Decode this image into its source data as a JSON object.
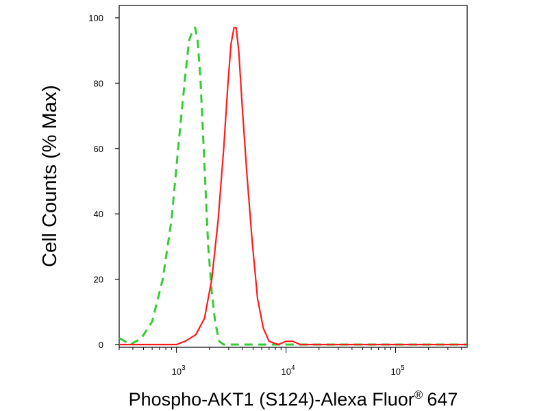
{
  "chart_data": {
    "type": "line",
    "title": "",
    "xlabel": "Phospho-AKT1 (S124)-Alexa Fluor",
    "xlabel_superscript": "®",
    "xlabel_suffix": "647",
    "ylabel": "Cell Counts (% Max)",
    "x_scale": "log",
    "xlim": [
      300,
      450000
    ],
    "ylim": [
      0,
      100
    ],
    "y_ticks": [
      0,
      20,
      40,
      60,
      80,
      100
    ],
    "x_major_ticks": [
      {
        "value": 1000,
        "base": "10",
        "exp": "3"
      },
      {
        "value": 10000,
        "base": "10",
        "exp": "4"
      },
      {
        "value": 100000,
        "base": "10",
        "exp": "5"
      }
    ],
    "grid": false,
    "legend": "none",
    "series": [
      {
        "color": "#33cc33",
        "style": "dashed",
        "points": [
          [
            300,
            2
          ],
          [
            380,
            0
          ],
          [
            480,
            2
          ],
          [
            600,
            7
          ],
          [
            750,
            20
          ],
          [
            900,
            38
          ],
          [
            1050,
            62
          ],
          [
            1200,
            82
          ],
          [
            1300,
            93
          ],
          [
            1400,
            96
          ],
          [
            1480,
            97
          ],
          [
            1560,
            93
          ],
          [
            1650,
            82
          ],
          [
            1750,
            64
          ],
          [
            1850,
            46
          ],
          [
            1950,
            30
          ],
          [
            2100,
            16
          ],
          [
            2250,
            7
          ],
          [
            2450,
            1
          ],
          [
            2700,
            0
          ],
          [
            450000,
            0
          ]
        ]
      },
      {
        "color": "#ff1a1a",
        "style": "solid",
        "points": [
          [
            300,
            0
          ],
          [
            1000,
            0
          ],
          [
            1200,
            1
          ],
          [
            1500,
            3
          ],
          [
            1800,
            8
          ],
          [
            2100,
            20
          ],
          [
            2400,
            38
          ],
          [
            2700,
            60
          ],
          [
            2950,
            80
          ],
          [
            3150,
            92
          ],
          [
            3350,
            97
          ],
          [
            3500,
            97
          ],
          [
            3700,
            90
          ],
          [
            4000,
            72
          ],
          [
            4400,
            52
          ],
          [
            4900,
            32
          ],
          [
            5500,
            14
          ],
          [
            6200,
            5
          ],
          [
            7000,
            1
          ],
          [
            8500,
            0
          ],
          [
            10000,
            1
          ],
          [
            11500,
            1
          ],
          [
            13500,
            0
          ],
          [
            450000,
            0
          ]
        ]
      }
    ]
  }
}
